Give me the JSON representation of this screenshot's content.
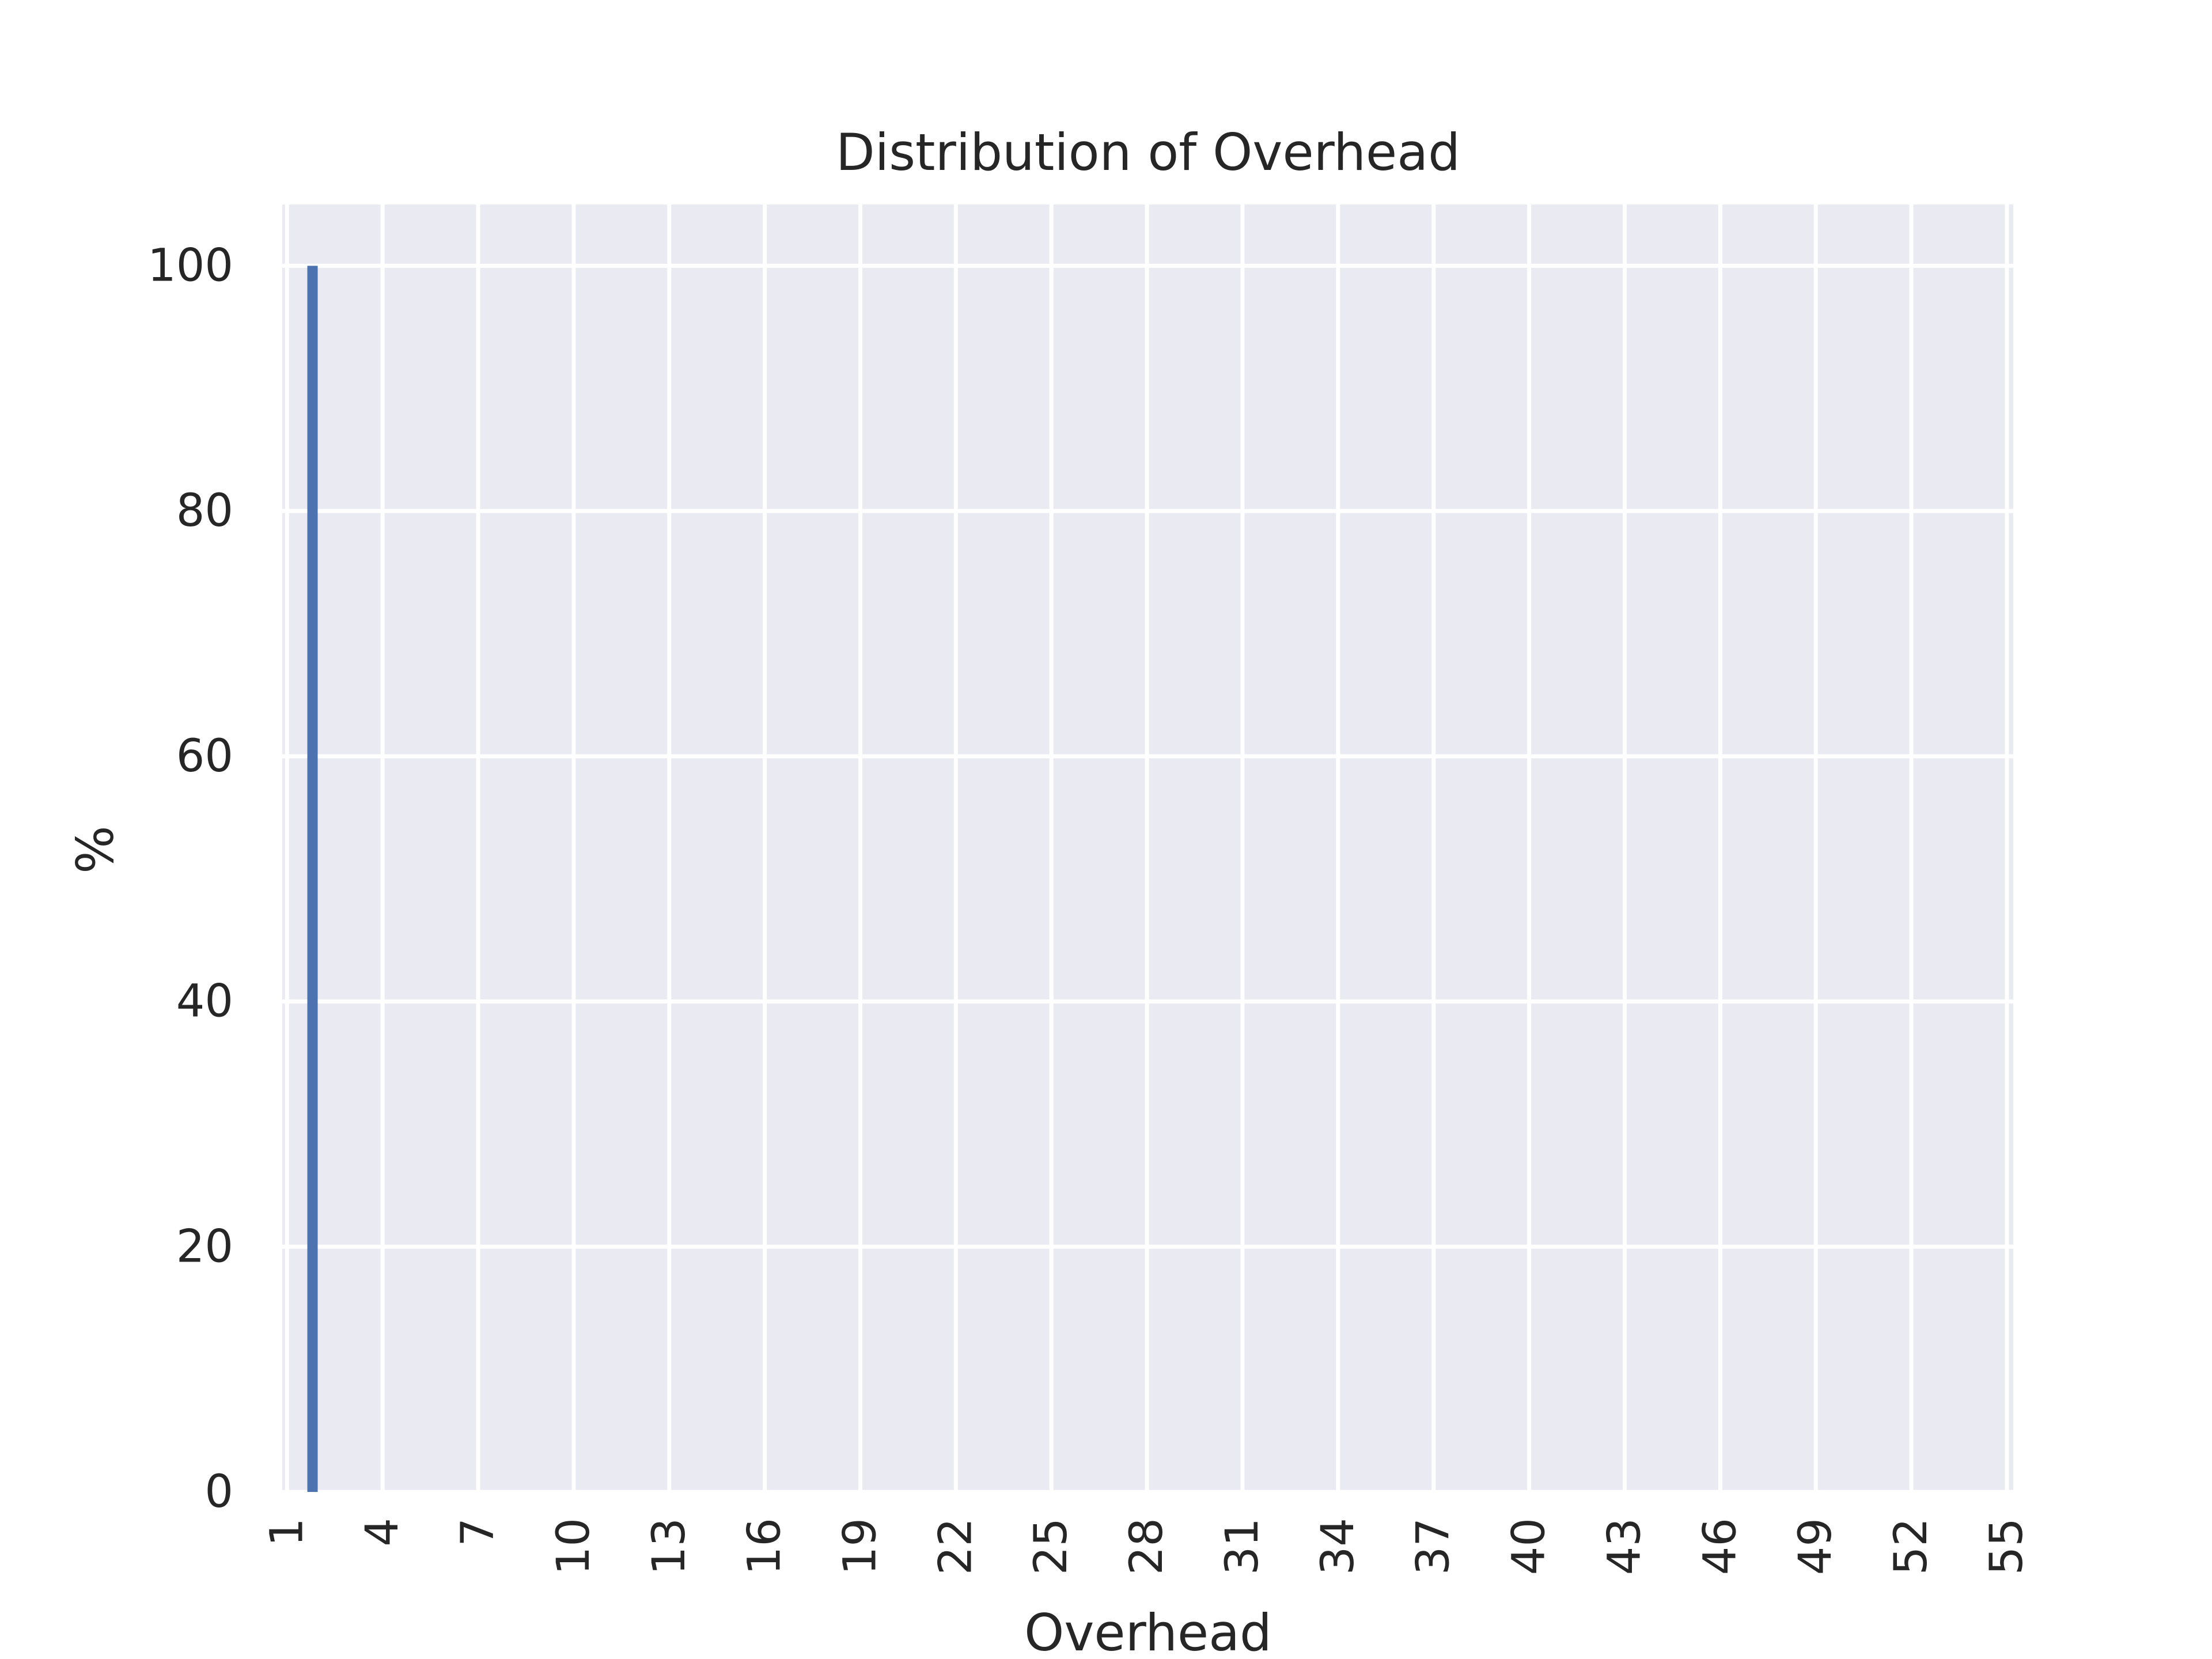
{
  "chart_data": {
    "type": "bar",
    "title": "Distribution of Overhead",
    "xlabel": "Overhead",
    "ylabel": "%",
    "x_ticks": [
      "1",
      "4",
      "7",
      "10",
      "13",
      "16",
      "19",
      "22",
      "25",
      "28",
      "31",
      "34",
      "37",
      "40",
      "43",
      "46",
      "49",
      "52",
      "55"
    ],
    "y_ticks": [
      "0",
      "20",
      "40",
      "60",
      "80",
      "100"
    ],
    "xlim": [
      0.85,
      55.2
    ],
    "ylim": [
      0,
      105
    ],
    "bars": [
      {
        "x": 1.8,
        "value": 100
      }
    ],
    "grid": true,
    "colors": {
      "bar": "#4c72b0",
      "plot_background": "#eaeaf2",
      "grid": "#ffffff"
    }
  }
}
